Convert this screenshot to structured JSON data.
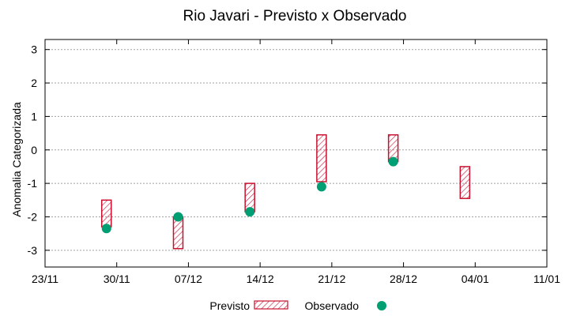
{
  "chart_data": {
    "type": "floating-bar-and-scatter",
    "title": "Rio Javari - Previsto x Observado",
    "xlabel": "",
    "ylabel": "Anomalia Categorizada",
    "x_ticks": [
      "23/11",
      "30/11",
      "07/12",
      "14/12",
      "21/12",
      "28/12",
      "04/01",
      "11/01"
    ],
    "y_ticks": [
      "-3",
      "-2",
      "-1",
      "0",
      "1",
      "2",
      "3"
    ],
    "xlim": [
      "2023-11-23",
      "2024-01-11"
    ],
    "ylim": [
      -3.5,
      3.3
    ],
    "grid": true,
    "legend_position": "bottom",
    "series": [
      {
        "name": "Previsto",
        "kind": "range-bar",
        "color": "#c8102e",
        "pattern": "diagonal-hatch",
        "points": [
          {
            "x": "2023-11-29",
            "low": -2.3,
            "high": -1.5
          },
          {
            "x": "2023-12-06",
            "low": -2.95,
            "high": -2.0
          },
          {
            "x": "2023-12-13",
            "low": -1.85,
            "high": -1.0
          },
          {
            "x": "2023-12-20",
            "low": -0.95,
            "high": 0.45
          },
          {
            "x": "2023-12-27",
            "low": -0.35,
            "high": 0.45
          },
          {
            "x": "2024-01-03",
            "low": -1.45,
            "high": -0.5
          }
        ]
      },
      {
        "name": "Observado",
        "kind": "scatter",
        "color": "#009e73",
        "points": [
          {
            "x": "2023-11-29",
            "y": -2.35
          },
          {
            "x": "2023-12-06",
            "y": -2.0
          },
          {
            "x": "2023-12-13",
            "y": -1.85
          },
          {
            "x": "2023-12-20",
            "y": -1.1
          },
          {
            "x": "2023-12-27",
            "y": -0.35
          }
        ]
      }
    ]
  }
}
